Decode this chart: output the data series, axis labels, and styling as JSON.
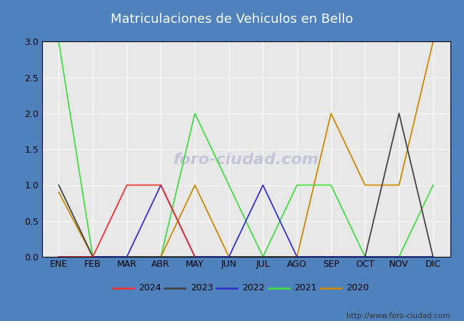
{
  "title": "Matriculaciones de Vehiculos en Bello",
  "months": [
    "ENE",
    "FEB",
    "MAR",
    "ABR",
    "MAY",
    "JUN",
    "JUL",
    "AGO",
    "SEP",
    "OCT",
    "NOV",
    "DIC"
  ],
  "series": {
    "2024": {
      "color": "#ee3333",
      "data": [
        0,
        0,
        1,
        1,
        0,
        null,
        null,
        null,
        null,
        null,
        null,
        null
      ]
    },
    "2023": {
      "color": "#444444",
      "data": [
        1,
        0,
        0,
        0,
        0,
        0,
        0,
        0,
        0,
        0,
        2,
        0
      ]
    },
    "2022": {
      "color": "#3333cc",
      "data": [
        0,
        0,
        0,
        1,
        0,
        0,
        1,
        0,
        0,
        0,
        0,
        0
      ]
    },
    "2021": {
      "color": "#44dd44",
      "data": [
        3,
        0,
        0,
        0,
        2,
        1,
        0,
        1,
        1,
        0,
        0,
        1
      ]
    },
    "2020": {
      "color": "#cc8800",
      "data": [
        0.9,
        0,
        0,
        0,
        1,
        0,
        0,
        0,
        2,
        1,
        1,
        3
      ]
    }
  },
  "ylim": [
    0.0,
    3.0
  ],
  "yticks": [
    0.0,
    0.5,
    1.0,
    1.5,
    2.0,
    2.5,
    3.0
  ],
  "title_bg_color": "#4f81bd",
  "title_text_color": "#ffffff",
  "outer_bg_color": "#4f81bd",
  "plot_bg_color": "#e8e8e8",
  "plot_border_color": "#000000",
  "grid_color": "#ffffff",
  "watermark_text": "foro-ciudad.com",
  "watermark_color": "#9999cc",
  "url_text": "http://www.foro-ciudad.com",
  "legend_years": [
    "2024",
    "2023",
    "2022",
    "2021",
    "2020"
  ],
  "legend_colors": [
    "#ee3333",
    "#444444",
    "#3333cc",
    "#44dd44",
    "#cc8800"
  ],
  "title_fontsize": 13,
  "tick_fontsize": 9,
  "legend_fontsize": 9,
  "url_fontsize": 7.5,
  "linewidth": 1.3
}
